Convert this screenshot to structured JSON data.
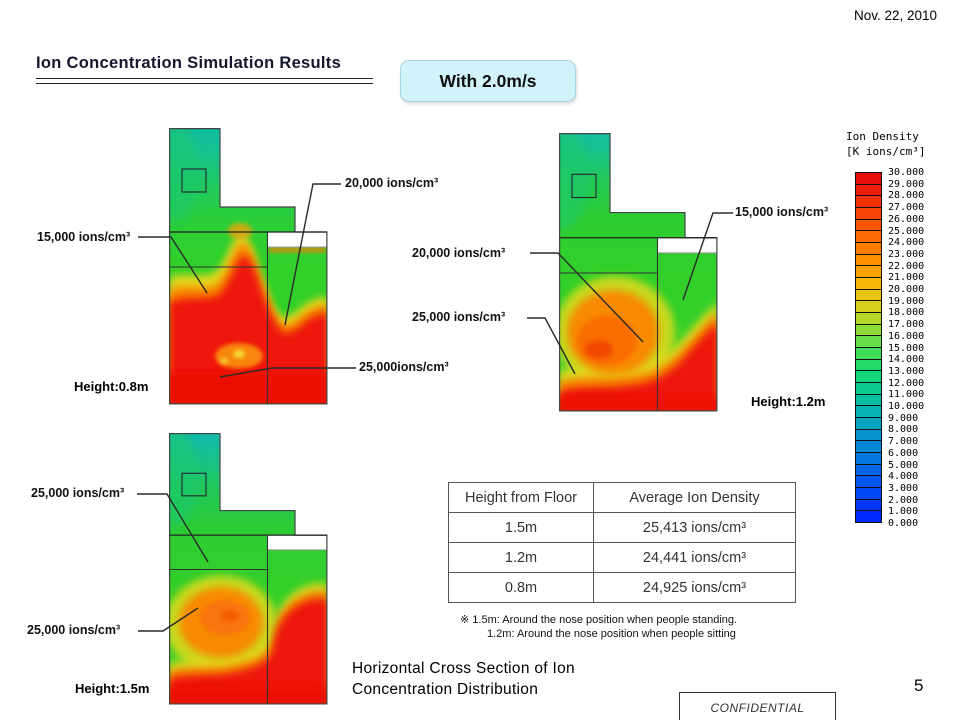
{
  "slide": {
    "date": "Nov. 22, 2010",
    "title": "Ion Concentration Simulation Results",
    "condition_badge": "With 2.0m/s",
    "caption_line1": "Horizontal Cross Section of Ion",
    "caption_line2": "Concentration Distribution",
    "confidential": "CONFIDENTIAL",
    "page_number": "5"
  },
  "maps": [
    {
      "id": "height-0.8m",
      "height_label": "Height:0.8m",
      "annotations": [
        {
          "text": "15,000 ions/cm³"
        },
        {
          "text": "20,000 ions/cm³"
        },
        {
          "text": "25,000ions/cm³"
        }
      ]
    },
    {
      "id": "height-1.2m",
      "height_label": "Height:1.2m",
      "annotations": [
        {
          "text": "15,000 ions/cm³"
        },
        {
          "text": "20,000 ions/cm³"
        },
        {
          "text": "25,000 ions/cm³"
        }
      ]
    },
    {
      "id": "height-1.5m",
      "height_label": "Height:1.5m",
      "annotations": [
        {
          "text": "25,000 ions/cm³"
        },
        {
          "text": "25,000 ions/cm³"
        }
      ]
    }
  ],
  "legend": {
    "title_line1": "Ion Density",
    "title_line2": "[K ions/cm³]",
    "tick_labels": [
      "30.000",
      "29.000",
      "28.000",
      "27.000",
      "26.000",
      "25.000",
      "24.000",
      "23.000",
      "22.000",
      "21.000",
      "20.000",
      "19.000",
      "18.000",
      "17.000",
      "16.000",
      "15.000",
      "14.000",
      "13.000",
      "12.000",
      "11.000",
      "10.000",
      "9.000",
      "8.000",
      "7.000",
      "6.000",
      "5.000",
      "4.000",
      "3.000",
      "2.000",
      "1.000",
      "0.000"
    ],
    "band_colors": [
      "#e90c0c",
      "#ee1d0a",
      "#f23008",
      "#f54406",
      "#f75705",
      "#f96a04",
      "#fb7d03",
      "#fc9002",
      "#fca302",
      "#f8b409",
      "#ecc513",
      "#d3cf1e",
      "#b5d72b",
      "#8fdc39",
      "#66df48",
      "#3fdf57",
      "#22dc68",
      "#14d67b",
      "#0ccd8f",
      "#09c1a2",
      "#08b3b2",
      "#06a4c0",
      "#0595cc",
      "#0486d6",
      "#0376df",
      "#0266e7",
      "#0256ee",
      "#0146f4",
      "#0136f9",
      "#0128fd"
    ]
  },
  "table": {
    "headers": [
      "Height from Floor",
      "Average Ion Density"
    ],
    "rows": [
      [
        "1.5m",
        "25,413 ions/cm³"
      ],
      [
        "1.2m",
        "24,441 ions/cm³"
      ],
      [
        "0.8m",
        "24,925 ions/cm³"
      ]
    ]
  },
  "footnote": {
    "line1": "※ 1.5m:  Around the nose position when people standing.",
    "line2": "1.2m:  Around the nose position when people sitting"
  },
  "chart_data": [
    {
      "type": "heatmap",
      "title": "Height:0.8m",
      "units": "ions/cm³",
      "value_range": [
        0,
        30000
      ],
      "annotated_contours": [
        15000,
        20000,
        25000
      ],
      "colorbar_label": "Ion Density [K ions/cm³]"
    },
    {
      "type": "heatmap",
      "title": "Height:1.2m",
      "units": "ions/cm³",
      "value_range": [
        0,
        30000
      ],
      "annotated_contours": [
        15000,
        20000,
        25000
      ],
      "colorbar_label": "Ion Density [K ions/cm³]"
    },
    {
      "type": "heatmap",
      "title": "Height:1.5m",
      "units": "ions/cm³",
      "value_range": [
        0,
        30000
      ],
      "annotated_contours": [
        25000,
        25000
      ],
      "colorbar_label": "Ion Density [K ions/cm³]"
    },
    {
      "type": "table",
      "title": "Average Ion Density by Height",
      "columns": [
        "Height from Floor",
        "Average Ion Density"
      ],
      "rows": [
        [
          "1.5m",
          25413
        ],
        [
          "1.2m",
          24441
        ],
        [
          "0.8m",
          24925
        ]
      ]
    }
  ]
}
